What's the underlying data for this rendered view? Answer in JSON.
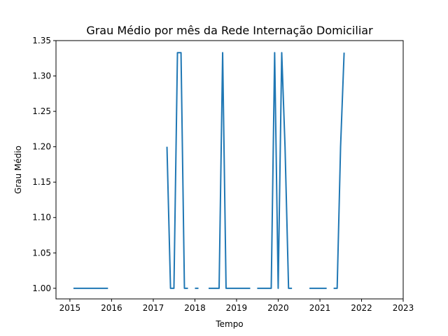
{
  "chart_data": {
    "type": "line",
    "title": "Grau Médio por mês da Rede Internação Domiciliar",
    "xlabel": "Tempo",
    "ylabel": "Grau Médio",
    "xlim": [
      "2014-09-01",
      "2023-01-01"
    ],
    "ylim": [
      0.985,
      1.35
    ],
    "x_ticks": [
      "2015",
      "2016",
      "2017",
      "2018",
      "2019",
      "2020",
      "2021",
      "2022",
      "2023"
    ],
    "y_ticks": [
      "1.00",
      "1.05",
      "1.10",
      "1.15",
      "1.20",
      "1.25",
      "1.30",
      "1.35"
    ],
    "grid": false,
    "series": [
      {
        "color": "#1f77b4",
        "points": [
          [
            "2015-02-01",
            1.0
          ],
          [
            "2015-03-01",
            1.0
          ],
          [
            "2015-04-01",
            1.0
          ],
          [
            "2015-05-01",
            1.0
          ],
          [
            "2015-06-01",
            1.0
          ],
          [
            "2015-07-01",
            1.0
          ],
          [
            "2015-08-01",
            1.0
          ],
          [
            "2015-09-01",
            1.0
          ],
          [
            "2015-10-01",
            1.0
          ],
          [
            "2015-11-01",
            1.0
          ],
          [
            "2015-12-01",
            1.0
          ],
          [
            "2017-05-01",
            1.2
          ],
          [
            "2017-06-01",
            1.0
          ],
          [
            "2017-07-01",
            1.0
          ],
          [
            "2017-08-01",
            1.333
          ],
          [
            "2017-09-01",
            1.333
          ],
          [
            "2017-10-01",
            1.0
          ],
          [
            "2017-11-01",
            1.0
          ],
          [
            "2018-01-01",
            1.0
          ],
          [
            "2018-02-01",
            1.0
          ],
          [
            "2018-05-01",
            1.0
          ],
          [
            "2018-06-01",
            1.0
          ],
          [
            "2018-07-01",
            1.0
          ],
          [
            "2018-08-01",
            1.0
          ],
          [
            "2018-09-01",
            1.333
          ],
          [
            "2018-10-01",
            1.0
          ],
          [
            "2018-11-01",
            1.0
          ],
          [
            "2018-12-01",
            1.0
          ],
          [
            "2019-01-01",
            1.0
          ],
          [
            "2019-02-01",
            1.0
          ],
          [
            "2019-03-01",
            1.0
          ],
          [
            "2019-04-01",
            1.0
          ],
          [
            "2019-05-01",
            1.0
          ],
          [
            "2019-07-01",
            1.0
          ],
          [
            "2019-08-01",
            1.0
          ],
          [
            "2019-09-01",
            1.0
          ],
          [
            "2019-10-01",
            1.0
          ],
          [
            "2019-11-01",
            1.0
          ],
          [
            "2019-12-01",
            1.333
          ],
          [
            "2020-01-01",
            1.0
          ],
          [
            "2020-02-01",
            1.333
          ],
          [
            "2020-03-01",
            1.2
          ],
          [
            "2020-04-01",
            1.0
          ],
          [
            "2020-05-01",
            1.0
          ],
          [
            "2020-10-01",
            1.0
          ],
          [
            "2020-11-01",
            1.0
          ],
          [
            "2020-12-01",
            1.0
          ],
          [
            "2021-01-01",
            1.0
          ],
          [
            "2021-02-01",
            1.0
          ],
          [
            "2021-03-01",
            1.0
          ],
          [
            "2021-05-01",
            1.0
          ],
          [
            "2021-06-01",
            1.0
          ],
          [
            "2021-07-01",
            1.2
          ],
          [
            "2021-08-01",
            1.333
          ]
        ]
      }
    ]
  }
}
